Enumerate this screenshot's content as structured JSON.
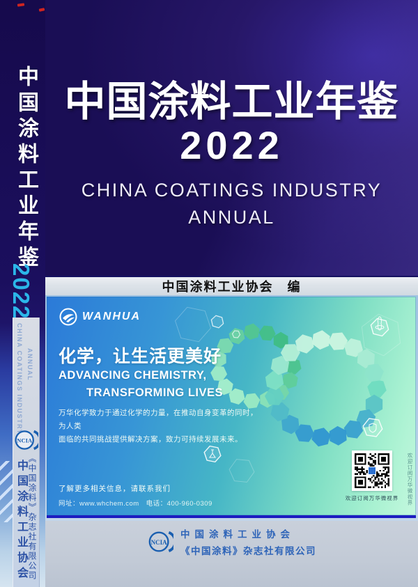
{
  "spine": {
    "title_vertical": "中国涂料工业年鉴",
    "year": "2022",
    "subtitle_rotated_1": "CHINA COATINGS INDUSTRY",
    "subtitle_rotated_2": "ANNUAL",
    "logo_text": "NCIA",
    "org_vertical": "中国涂料工业协会",
    "publisher_vertical": "《中国涂料》杂志社有限公司"
  },
  "cover": {
    "title": "中国涂料工业年鉴",
    "year": "2022",
    "subtitle_line1": "CHINA COATINGS INDUSTRY",
    "subtitle_line2": "ANNUAL",
    "editor_line": "中国涂料工业协会　编"
  },
  "ad": {
    "brand": "WANHUA",
    "slogan_cn": "化学，让生活更美好",
    "slogan_en_line1": "ADVANCING CHEMISTRY,",
    "slogan_en_line2": "TRANSFORMING LIVES",
    "body_line1": "万华化学致力于通过化学的力量，在推动自身变革的同时，为人类",
    "body_line2": "面临的共同挑战提供解决方案，致力可持续发展未来。",
    "contact_line1": "了解更多相关信息，请联系我们",
    "contact_line2": "网址：www.whchem.com　电话：400-960-0309",
    "qr_caption": "欢迎订阅万华微视界",
    "side_note": "欢迎订阅万华微视界"
  },
  "footer": {
    "logo_text": "NCIA",
    "org": "中国涂料工业协会",
    "publisher": "《中国涂料》杂志社有限公司"
  },
  "colors": {
    "cover_navy": "#1a0e55",
    "spine_year_cyan": "#2bb6e9",
    "ad_blue": "#2b7ad8",
    "ad_mint": "#c4f8de",
    "ncia_blue": "#1a5fb0",
    "footer_text_blue": "#2e64b8",
    "band_bg": "#dde3e9"
  }
}
